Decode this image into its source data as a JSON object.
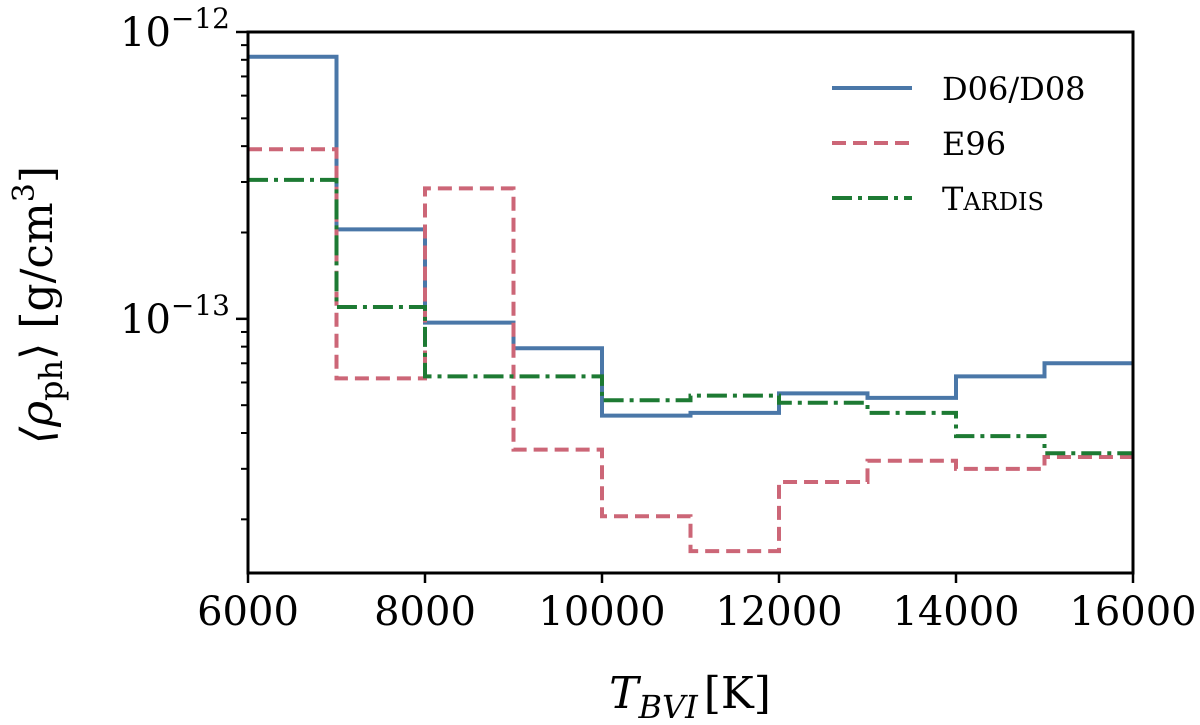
{
  "chart_data": {
    "type": "line",
    "drawstyle": "steps-post",
    "title": "",
    "xlabel": {
      "italic_main": "T",
      "italic_sub": "BVI",
      "units": "[K]"
    },
    "ylabel": {
      "main": "⟨ρ",
      "sub": "ph",
      "close": "⟩ [g/cm",
      "sup": "3",
      "end": "]"
    },
    "xlim": [
      6000,
      16000
    ],
    "ylim": [
      1.3e-14,
      1e-12
    ],
    "yscale": "log",
    "x_ticks": [
      6000,
      8000,
      10000,
      12000,
      14000,
      16000
    ],
    "x_tick_labels": [
      "6000",
      "8000",
      "10000",
      "12000",
      "14000",
      "16000"
    ],
    "y_major_ticks": [
      {
        "value": 1e-12,
        "base": "10",
        "exp": "−12"
      },
      {
        "value": 1e-13,
        "base": "10",
        "exp": "−13"
      }
    ],
    "y_minor_ticks": [
      2e-14,
      3e-14,
      4e-14,
      5e-14,
      6e-14,
      7e-14,
      8e-14,
      9e-14,
      2e-13,
      3e-13,
      4e-13,
      5e-13,
      6e-13,
      7e-13,
      8e-13,
      9e-13
    ],
    "bin_edges": [
      6000,
      7000,
      8000,
      9000,
      10000,
      11000,
      12000,
      13000,
      14000,
      15000,
      16000
    ],
    "legend_position": "top-right",
    "series": [
      {
        "name": "D06/D08",
        "color": "#4a77a8",
        "dash": "solid",
        "values": [
          8.2e-13,
          2.05e-13,
          9.7e-14,
          7.9e-14,
          4.6e-14,
          4.7e-14,
          5.5e-14,
          5.3e-14,
          6.3e-14,
          7e-14
        ]
      },
      {
        "name": "E96",
        "color": "#cc6677",
        "dash": "dashed",
        "values": [
          3.9e-13,
          6.2e-14,
          2.85e-13,
          3.5e-14,
          2.05e-14,
          1.55e-14,
          2.7e-14,
          3.2e-14,
          3e-14,
          3.3e-14
        ]
      },
      {
        "name": "TARDIS",
        "legend_caps": "T",
        "legend_rest": "ARDIS",
        "color": "#1d7a33",
        "dash": "dashdot",
        "values": [
          3.05e-13,
          1.1e-13,
          6.3e-14,
          6.3e-14,
          5.2e-14,
          5.4e-14,
          5.1e-14,
          4.7e-14,
          3.9e-14,
          3.4e-14
        ]
      }
    ]
  }
}
